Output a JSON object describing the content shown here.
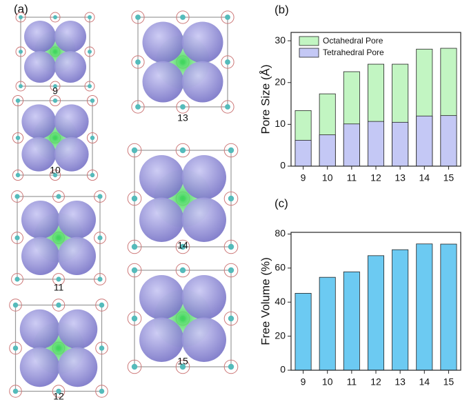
{
  "structures": {
    "panel_label": "(a)",
    "labels": [
      "9",
      "13",
      "10",
      "14",
      "11",
      "15",
      "12"
    ]
  },
  "chart_data": [
    {
      "type": "bar",
      "panel_label": "(b)",
      "barmode": "overlay",
      "ylabel": "Pore Size (Å)",
      "categories": [
        "9",
        "10",
        "11",
        "12",
        "13",
        "14",
        "15"
      ],
      "series": [
        {
          "name": "Octahedral Pore",
          "color": "#c2f5c2",
          "values": [
            13.3,
            17.3,
            22.6,
            24.4,
            24.4,
            28.0,
            28.2
          ]
        },
        {
          "name": "Tetrahedral Pore",
          "color": "#c4c8f5",
          "values": [
            6.2,
            7.5,
            10.1,
            10.7,
            10.5,
            12.0,
            12.1
          ]
        }
      ],
      "ylim": [
        0,
        32
      ],
      "yticks": [
        0,
        10,
        20,
        30
      ],
      "legend": "upper-left"
    },
    {
      "type": "bar",
      "panel_label": "(c)",
      "ylabel": "Free Volume (%)",
      "categories": [
        "9",
        "10",
        "11",
        "12",
        "13",
        "14",
        "15"
      ],
      "values": [
        45.2,
        54.6,
        57.8,
        67.3,
        70.8,
        74.2,
        74.1
      ],
      "color": "#6ccaf2",
      "ylim": [
        0,
        81
      ],
      "yticks": [
        0,
        20,
        40,
        60,
        80
      ]
    }
  ]
}
